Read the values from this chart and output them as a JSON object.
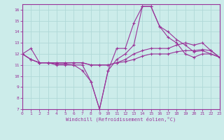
{
  "xlabel": "Windchill (Refroidissement éolien,°C)",
  "xlim": [
    0,
    23
  ],
  "ylim": [
    7,
    16.5
  ],
  "yticks": [
    7,
    8,
    9,
    10,
    11,
    12,
    13,
    14,
    15,
    16
  ],
  "xticks": [
    0,
    1,
    2,
    3,
    4,
    5,
    6,
    7,
    8,
    9,
    10,
    11,
    12,
    13,
    14,
    15,
    16,
    17,
    18,
    19,
    20,
    21,
    22,
    23
  ],
  "bg_color": "#ccecea",
  "grid_color": "#b0d8d8",
  "line_color": "#993399",
  "series": [
    [
      12.0,
      12.5,
      11.2,
      11.2,
      11.1,
      11.1,
      11.0,
      10.5,
      9.5,
      7.0,
      10.5,
      12.5,
      12.5,
      14.8,
      16.3,
      16.3,
      14.5,
      14.0,
      13.3,
      12.8,
      12.2,
      12.3,
      12.0,
      11.7
    ],
    [
      12.0,
      11.5,
      11.2,
      11.2,
      11.0,
      11.0,
      11.0,
      11.0,
      9.5,
      7.0,
      10.5,
      11.5,
      12.0,
      12.8,
      16.3,
      16.3,
      14.5,
      13.5,
      13.0,
      12.0,
      11.7,
      12.0,
      12.0,
      11.7
    ],
    [
      12.0,
      11.5,
      11.2,
      11.2,
      11.2,
      11.2,
      11.2,
      11.2,
      11.0,
      11.0,
      11.0,
      11.2,
      11.3,
      11.5,
      11.8,
      12.0,
      12.0,
      12.0,
      12.2,
      12.3,
      12.3,
      12.4,
      12.3,
      11.7
    ],
    [
      12.0,
      11.5,
      11.2,
      11.2,
      11.2,
      11.2,
      11.2,
      11.2,
      11.0,
      11.0,
      11.0,
      11.2,
      11.5,
      12.0,
      12.3,
      12.5,
      12.5,
      12.5,
      12.8,
      13.0,
      12.8,
      13.0,
      12.3,
      11.7
    ]
  ]
}
